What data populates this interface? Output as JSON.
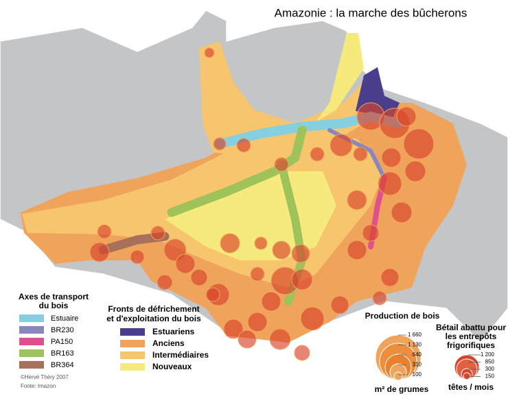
{
  "title": "Amazonie : la marche des bûcherons",
  "transport_legend": {
    "title_lines": [
      "Axes de transport",
      "du bois"
    ],
    "items": [
      {
        "label": "Estuaire",
        "color": "#84cfe0"
      },
      {
        "label": "BR230",
        "color": "#8a86c0"
      },
      {
        "label": "PA150",
        "color": "#e0508c"
      },
      {
        "label": "BR163",
        "color": "#9fc35a"
      },
      {
        "label": "BR364",
        "color": "#a8705a"
      }
    ]
  },
  "fronts_legend": {
    "title_lines": [
      "Fronts de défrichement",
      "et d'exploitation du bois"
    ],
    "items": [
      {
        "label": "Estuariens",
        "color": "#4b3e8c"
      },
      {
        "label": "Anciens",
        "color": "#f0a35a"
      },
      {
        "label": "Intermédiaires",
        "color": "#f6c56e"
      },
      {
        "label": "Nouveaux",
        "color": "#f6ea7c"
      }
    ]
  },
  "production_legend": {
    "title": "Production de bois",
    "scale": [
      "1 660",
      "1 130",
      "640",
      "310",
      "100"
    ],
    "unit": "m² de grumes"
  },
  "cattle_legend": {
    "title_lines": [
      "Bétail abattu pour",
      "les entrepôts",
      "frigorifiques"
    ],
    "scale": [
      "1 200",
      "850",
      "300",
      "150"
    ],
    "unit": "têtes / mois"
  },
  "credits": [
    "©Hervé Théry 2007",
    "Fonte: Imazon"
  ]
}
